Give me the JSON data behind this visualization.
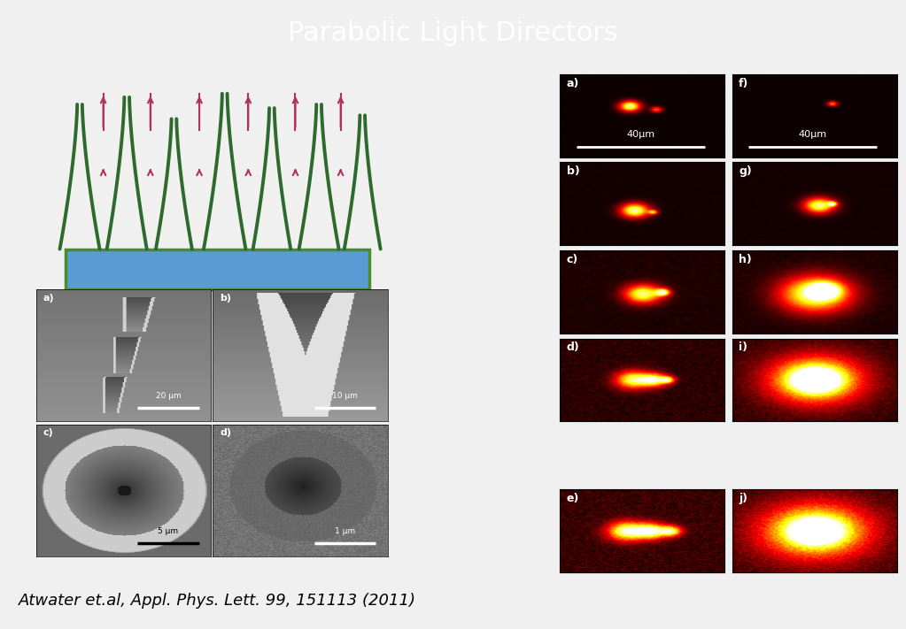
{
  "title": "Parabolic Light Directors",
  "title_color": "white",
  "title_bg_color": "black",
  "bg_color": "#f0f0f0",
  "citation": "Atwater et.al, Appl. Phys. Lett. 99, 151113 (2011)",
  "citation_fontsize": 13,
  "title_fontsize": 22,
  "row_labels_left": [
    "a)",
    "b)",
    "c)",
    "d)",
    "e)"
  ],
  "row_labels_right": [
    "f)",
    "g)",
    "h)",
    "i)",
    "j)"
  ],
  "scale_label_a": "40μm",
  "scale_label_f": "40μm",
  "sem_scale_labels": [
    "20 μm",
    "10 μm",
    "5 μm",
    "1 μm"
  ],
  "arrow_color": "#b03060",
  "green_dark": "#2d6a2d",
  "green_light": "#4a8c2a",
  "substrate_blue": "#5b9bd5",
  "substrate_green": "#4a8c2a"
}
